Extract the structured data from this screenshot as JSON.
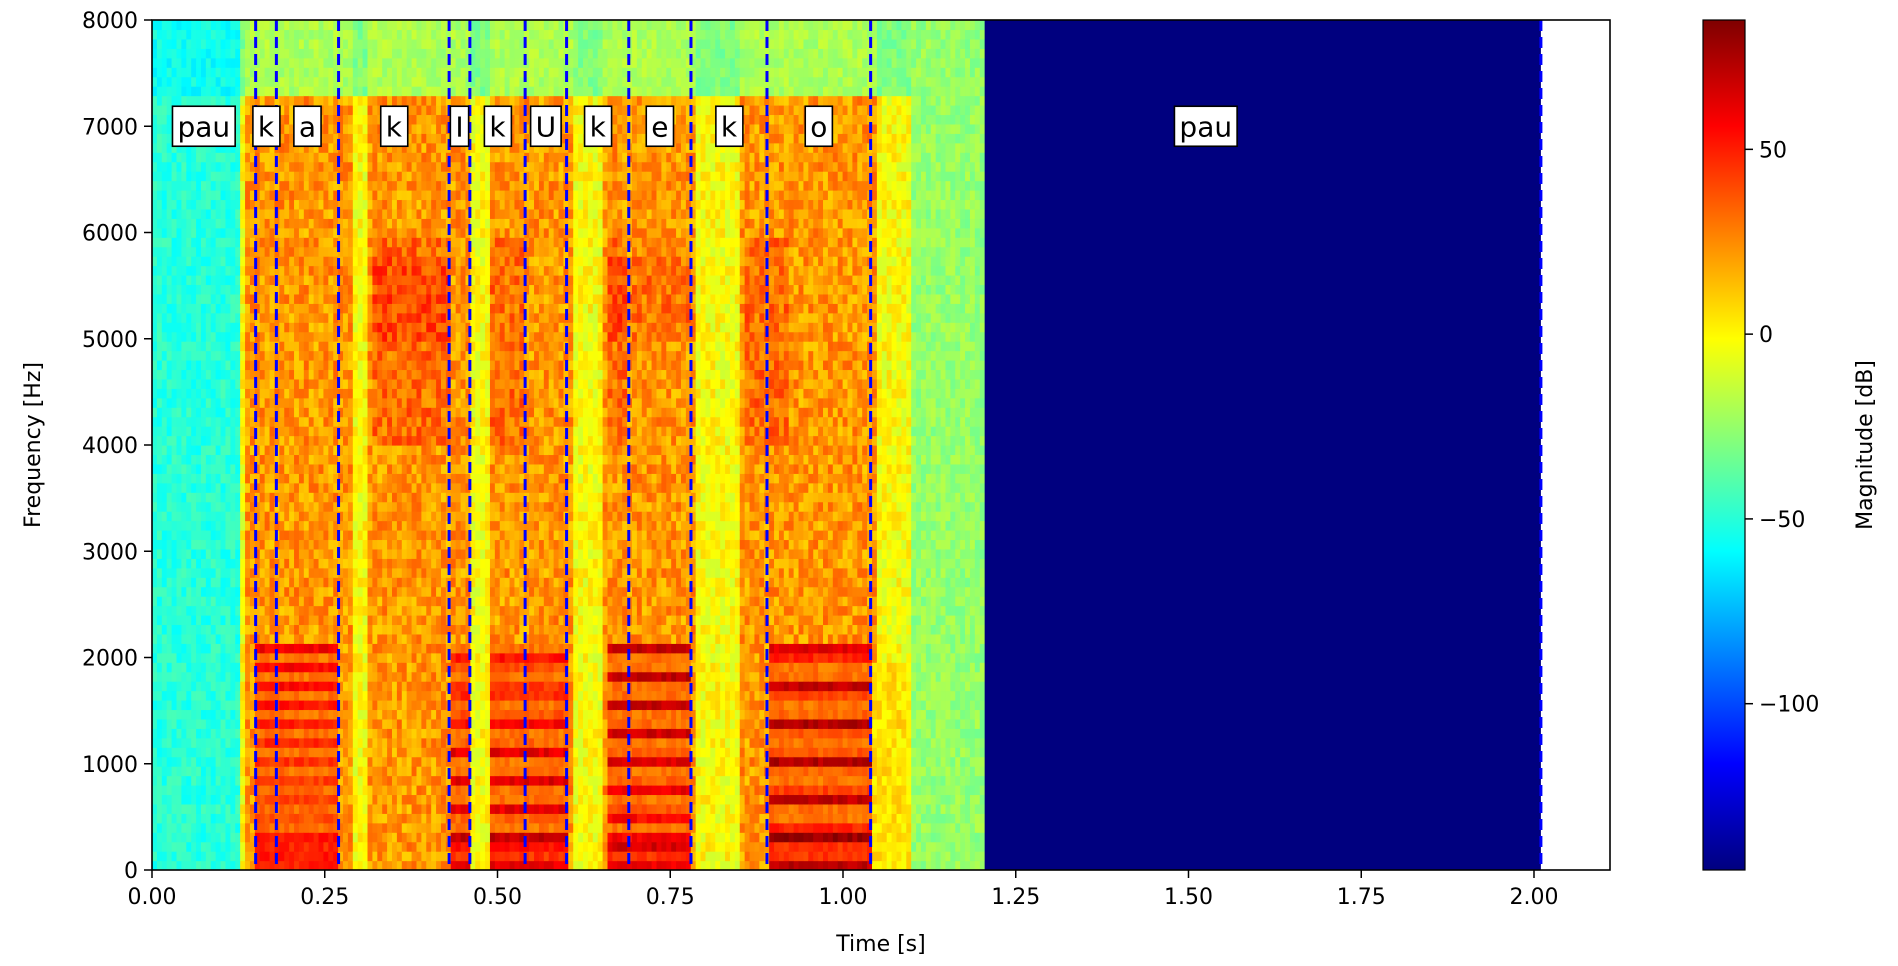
{
  "chart_data": {
    "type": "heatmap",
    "xlabel": "Time [s]",
    "ylabel": "Frequency [Hz]",
    "xlim": [
      0,
      2.11
    ],
    "ylim": [
      0,
      8000
    ],
    "x_ticks": [
      "0.00",
      "0.25",
      "0.50",
      "0.75",
      "1.00",
      "1.25",
      "1.50",
      "1.75",
      "2.00"
    ],
    "y_ticks": [
      "0",
      "1000",
      "2000",
      "3000",
      "4000",
      "5000",
      "6000",
      "7000",
      "8000"
    ],
    "colormap": "jet",
    "colorbar": {
      "label": "Magnitude [dB]",
      "range": [
        -145,
        85
      ],
      "ticks": [
        "50",
        "0",
        "−50",
        "−100"
      ]
    },
    "signal_end_time": 1.205,
    "silence_color": "#00007f",
    "boundary_line_color": "#0000ff",
    "boundaries": [
      0.15,
      0.18,
      0.27,
      0.43,
      0.46,
      0.54,
      0.6,
      0.69,
      0.78,
      0.89,
      1.04,
      2.01
    ],
    "phonemes": [
      {
        "label": "pau",
        "start": 0.0,
        "end": 0.15
      },
      {
        "label": "k",
        "start": 0.15,
        "end": 0.18
      },
      {
        "label": "a",
        "start": 0.18,
        "end": 0.27
      },
      {
        "label": "k",
        "start": 0.27,
        "end": 0.43
      },
      {
        "label": "I",
        "start": 0.43,
        "end": 0.46
      },
      {
        "label": "k",
        "start": 0.46,
        "end": 0.54
      },
      {
        "label": "U",
        "start": 0.54,
        "end": 0.6
      },
      {
        "label": "k",
        "start": 0.6,
        "end": 0.69
      },
      {
        "label": "e",
        "start": 0.69,
        "end": 0.78
      },
      {
        "label": "k",
        "start": 0.78,
        "end": 0.89
      },
      {
        "label": "o",
        "start": 0.89,
        "end": 1.04
      },
      {
        "label": "pau",
        "start": 1.04,
        "end": 2.01
      }
    ],
    "phoneme_label_frequency": 7000
  }
}
